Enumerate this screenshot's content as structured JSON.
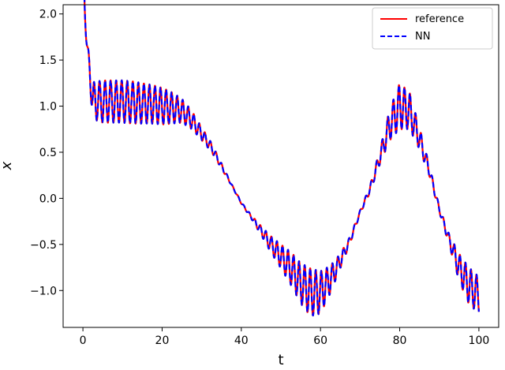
{
  "chart_data": {
    "type": "line",
    "title": "",
    "xlabel": "t",
    "ylabel": "x",
    "xlim": [
      -5,
      105
    ],
    "ylim": [
      -1.4,
      2.1
    ],
    "xticks": [
      0,
      20,
      40,
      60,
      80,
      100
    ],
    "xtick_labels": [
      "0",
      "20",
      "40",
      "60",
      "80",
      "100"
    ],
    "yticks": [
      -1.0,
      -0.5,
      0.0,
      0.5,
      1.0,
      1.5,
      2.0
    ],
    "ytick_labels": [
      "−1.0",
      "−0.5",
      "0.0",
      "0.5",
      "1.0",
      "1.5",
      "2.0"
    ],
    "grid": false,
    "legend_position": "top-right",
    "x": [
      0,
      2.5,
      5,
      7.5,
      10,
      12.5,
      15,
      17.5,
      20,
      22.5,
      25,
      27.5,
      30,
      32.5,
      35,
      37.5,
      40,
      42.5,
      45,
      47.5,
      50,
      52.5,
      55,
      57.5,
      60,
      62.5,
      65,
      67.5,
      70,
      72.5,
      75,
      77.5,
      80,
      82.5,
      85,
      87.5,
      90,
      92.5,
      95,
      97.5,
      100
    ],
    "envelope_mean": [
      2.0,
      1.06,
      1.05,
      1.05,
      1.05,
      1.04,
      1.03,
      1.02,
      1.0,
      0.98,
      0.95,
      0.85,
      0.7,
      0.55,
      0.35,
      0.15,
      -0.05,
      -0.2,
      -0.35,
      -0.5,
      -0.63,
      -0.76,
      -0.92,
      -1.02,
      -1.02,
      -0.88,
      -0.68,
      -0.45,
      -0.15,
      0.1,
      0.45,
      0.8,
      1.0,
      0.95,
      0.65,
      0.3,
      -0.12,
      -0.45,
      -0.75,
      -0.95,
      -1.05
    ],
    "oscillation_amplitude": [
      0.0,
      0.2,
      0.23,
      0.23,
      0.23,
      0.23,
      0.22,
      0.21,
      0.2,
      0.17,
      0.13,
      0.1,
      0.07,
      0.05,
      0.03,
      0.01,
      0.01,
      0.02,
      0.05,
      0.09,
      0.13,
      0.18,
      0.22,
      0.26,
      0.23,
      0.15,
      0.08,
      0.04,
      0.02,
      0.04,
      0.08,
      0.17,
      0.25,
      0.2,
      0.12,
      0.06,
      0.03,
      0.06,
      0.15,
      0.2,
      0.2
    ],
    "oscillation_period": 1.4,
    "series": [
      {
        "name": "reference",
        "color": "#ff0000",
        "style": "solid"
      },
      {
        "name": "NN",
        "color": "#0000ff",
        "style": "dashed"
      }
    ]
  }
}
